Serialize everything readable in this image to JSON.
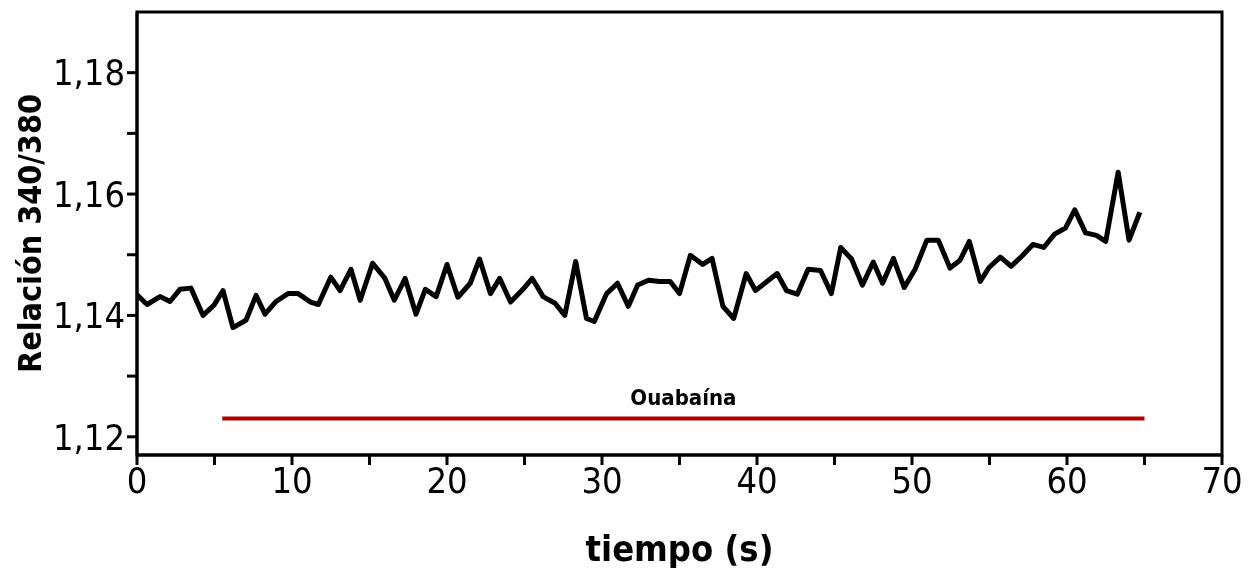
{
  "chart_data": {
    "type": "line",
    "xlabel": "tiempo (s)",
    "ylabel": "Relación 340/380",
    "xlim": [
      0,
      70
    ],
    "ylim": [
      1.117,
      1.19
    ],
    "xticks": [
      0,
      {
        "value": 5,
        "label": null
      },
      10,
      {
        "value": 15,
        "label": null
      },
      20,
      {
        "value": 25,
        "label": null
      },
      30,
      {
        "value": 35,
        "label": null
      },
      40,
      {
        "value": 45,
        "label": null
      },
      50,
      {
        "value": 55,
        "label": null
      },
      60,
      {
        "value": 65,
        "label": null
      },
      70
    ],
    "yticks": [
      {
        "value": 1.12,
        "label": "1,12"
      },
      {
        "value": 1.13,
        "label": null
      },
      {
        "value": 1.14,
        "label": "1,14"
      },
      {
        "value": 1.15,
        "label": null
      },
      {
        "value": 1.16,
        "label": "1,16"
      },
      {
        "value": 1.17,
        "label": null
      },
      {
        "value": 1.18,
        "label": "1,18"
      }
    ],
    "series": [
      {
        "color": "#000000",
        "x": [
          0,
          0.65,
          1.48,
          2.13,
          2.77,
          3.48,
          4.26,
          4.97,
          5.55,
          6.19,
          7.03,
          7.68,
          8.26,
          8.97,
          9.74,
          10.4,
          11.2,
          11.7,
          12.5,
          13.1,
          13.8,
          14.4,
          15.2,
          16.0,
          16.6,
          17.3,
          18.0,
          18.6,
          19.3,
          20.0,
          20.7,
          21.5,
          22.1,
          22.8,
          23.4,
          24.1,
          24.9,
          25.5,
          26.2,
          26.97,
          27.6,
          28.3,
          29.0,
          29.5,
          30.3,
          31.0,
          31.7,
          32.3,
          33.0,
          33.7,
          34.4,
          35.0,
          35.7,
          36.5,
          37.1,
          37.8,
          38.5,
          39.3,
          39.9,
          40.6,
          41.3,
          41.9,
          42.6,
          43.3,
          44.1,
          44.8,
          45.4,
          46.1,
          46.8,
          47.5,
          48.1,
          48.8,
          49.5,
          50.2,
          50.96,
          51.7,
          52.45,
          53.1,
          53.7,
          54.4,
          54.97,
          55.7,
          56.4,
          57.1,
          57.8,
          58.5,
          59.2,
          59.9,
          60.5,
          61.2,
          61.9,
          62.5,
          63.3,
          64.0,
          64.7
        ],
        "values": [
          1.1434,
          1.1418,
          1.1431,
          1.1423,
          1.1443,
          1.1445,
          1.14,
          1.1417,
          1.1441,
          1.138,
          1.1392,
          1.1433,
          1.1402,
          1.1423,
          1.1436,
          1.1436,
          1.1422,
          1.1418,
          1.1463,
          1.1441,
          1.1476,
          1.1425,
          1.1486,
          1.1461,
          1.1425,
          1.1461,
          1.1402,
          1.1443,
          1.1431,
          1.1484,
          1.143,
          1.1453,
          1.1493,
          1.1436,
          1.1461,
          1.1422,
          1.1443,
          1.1461,
          1.1431,
          1.142,
          1.14,
          1.1489,
          1.1395,
          1.139,
          1.1436,
          1.1453,
          1.1415,
          1.145,
          1.1458,
          1.1456,
          1.1456,
          1.1436,
          1.1499,
          1.1484,
          1.1494,
          1.1415,
          1.1395,
          1.1469,
          1.1441,
          1.1455,
          1.1469,
          1.1441,
          1.1435,
          1.1476,
          1.1474,
          1.1436,
          1.1512,
          1.1493,
          1.145,
          1.1488,
          1.1453,
          1.1494,
          1.1446,
          1.1476,
          1.1524,
          1.1524,
          1.1478,
          1.1491,
          1.1522,
          1.1456,
          1.1479,
          1.1496,
          1.1481,
          1.1498,
          1.1517,
          1.1512,
          1.1534,
          1.1544,
          1.1574,
          1.1536,
          1.1532,
          1.1522,
          1.1636,
          1.1524,
          1.157
        ]
      },
      {
        "color": "#b00000",
        "x": [
          5.5,
          65
        ],
        "values": [
          1.123,
          1.123
        ]
      }
    ],
    "annotations": [
      {
        "text": "Ouabaína",
        "x": 35.25,
        "y": 1.123
      }
    ]
  }
}
